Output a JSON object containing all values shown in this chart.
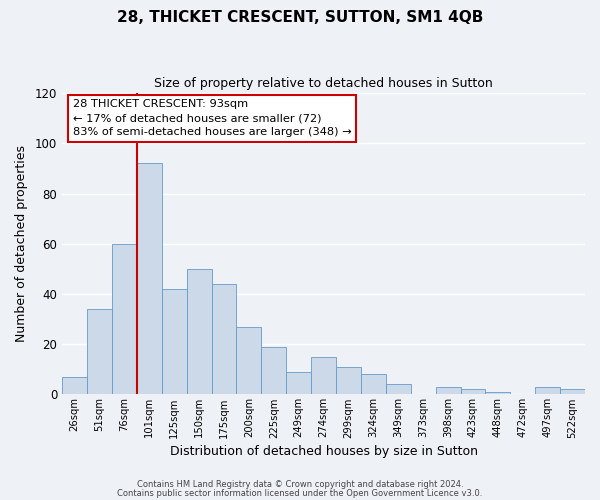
{
  "title": "28, THICKET CRESCENT, SUTTON, SM1 4QB",
  "subtitle": "Size of property relative to detached houses in Sutton",
  "xlabel": "Distribution of detached houses by size in Sutton",
  "ylabel": "Number of detached properties",
  "bar_color": "#ccd9e8",
  "bar_edge_color": "#6699cc",
  "categories": [
    "26sqm",
    "51sqm",
    "76sqm",
    "101sqm",
    "125sqm",
    "150sqm",
    "175sqm",
    "200sqm",
    "225sqm",
    "249sqm",
    "274sqm",
    "299sqm",
    "324sqm",
    "349sqm",
    "373sqm",
    "398sqm",
    "423sqm",
    "448sqm",
    "472sqm",
    "497sqm",
    "522sqm"
  ],
  "values": [
    7,
    34,
    60,
    92,
    42,
    50,
    44,
    27,
    19,
    9,
    15,
    11,
    8,
    4,
    0,
    3,
    2,
    1,
    0,
    3,
    2
  ],
  "ylim": [
    0,
    120
  ],
  "yticks": [
    0,
    20,
    40,
    60,
    80,
    100,
    120
  ],
  "red_line_index": 3,
  "annotation_title": "28 THICKET CRESCENT: 93sqm",
  "annotation_line1": "← 17% of detached houses are smaller (72)",
  "annotation_line2": "83% of semi-detached houses are larger (348) →",
  "footer1": "Contains HM Land Registry data © Crown copyright and database right 2024.",
  "footer2": "Contains public sector information licensed under the Open Government Licence v3.0.",
  "background_color": "#eef2f7",
  "grid_color": "#ffffff",
  "annotation_box_color": "#ffffff",
  "annotation_box_edge": "#cc0000",
  "red_line_color": "#cc0000"
}
